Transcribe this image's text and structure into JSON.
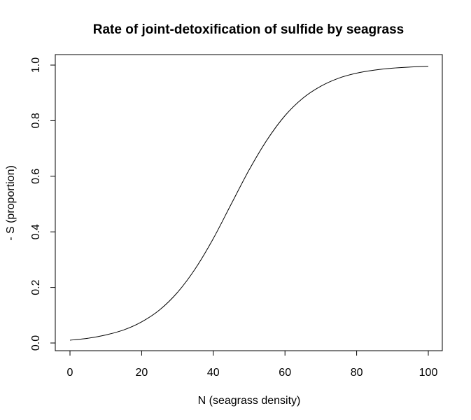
{
  "chart_data": {
    "type": "line",
    "title": "Rate of joint-detoxification of sulfide by seagrass",
    "xlabel": "N (seagrass density)",
    "ylabel": "- S (proportion)",
    "xlim": [
      0,
      100
    ],
    "ylim": [
      0,
      1
    ],
    "xticks": [
      "0",
      "20",
      "40",
      "60",
      "80",
      "100"
    ],
    "yticks": [
      "0.0",
      "0.2",
      "0.4",
      "0.6",
      "0.8",
      "1.0"
    ],
    "grid": false,
    "legend": "none",
    "line_color": "#000000",
    "series": [
      {
        "x": [
          0,
          5,
          10,
          15,
          20,
          25,
          30,
          35,
          40,
          45,
          50,
          55,
          60,
          65,
          70,
          75,
          80,
          85,
          90,
          95,
          100
        ],
        "y": [
          0.01,
          0.017,
          0.029,
          0.047,
          0.076,
          0.119,
          0.182,
          0.268,
          0.376,
          0.5,
          0.623,
          0.731,
          0.818,
          0.881,
          0.924,
          0.953,
          0.971,
          0.982,
          0.989,
          0.993,
          0.996
        ]
      }
    ]
  }
}
